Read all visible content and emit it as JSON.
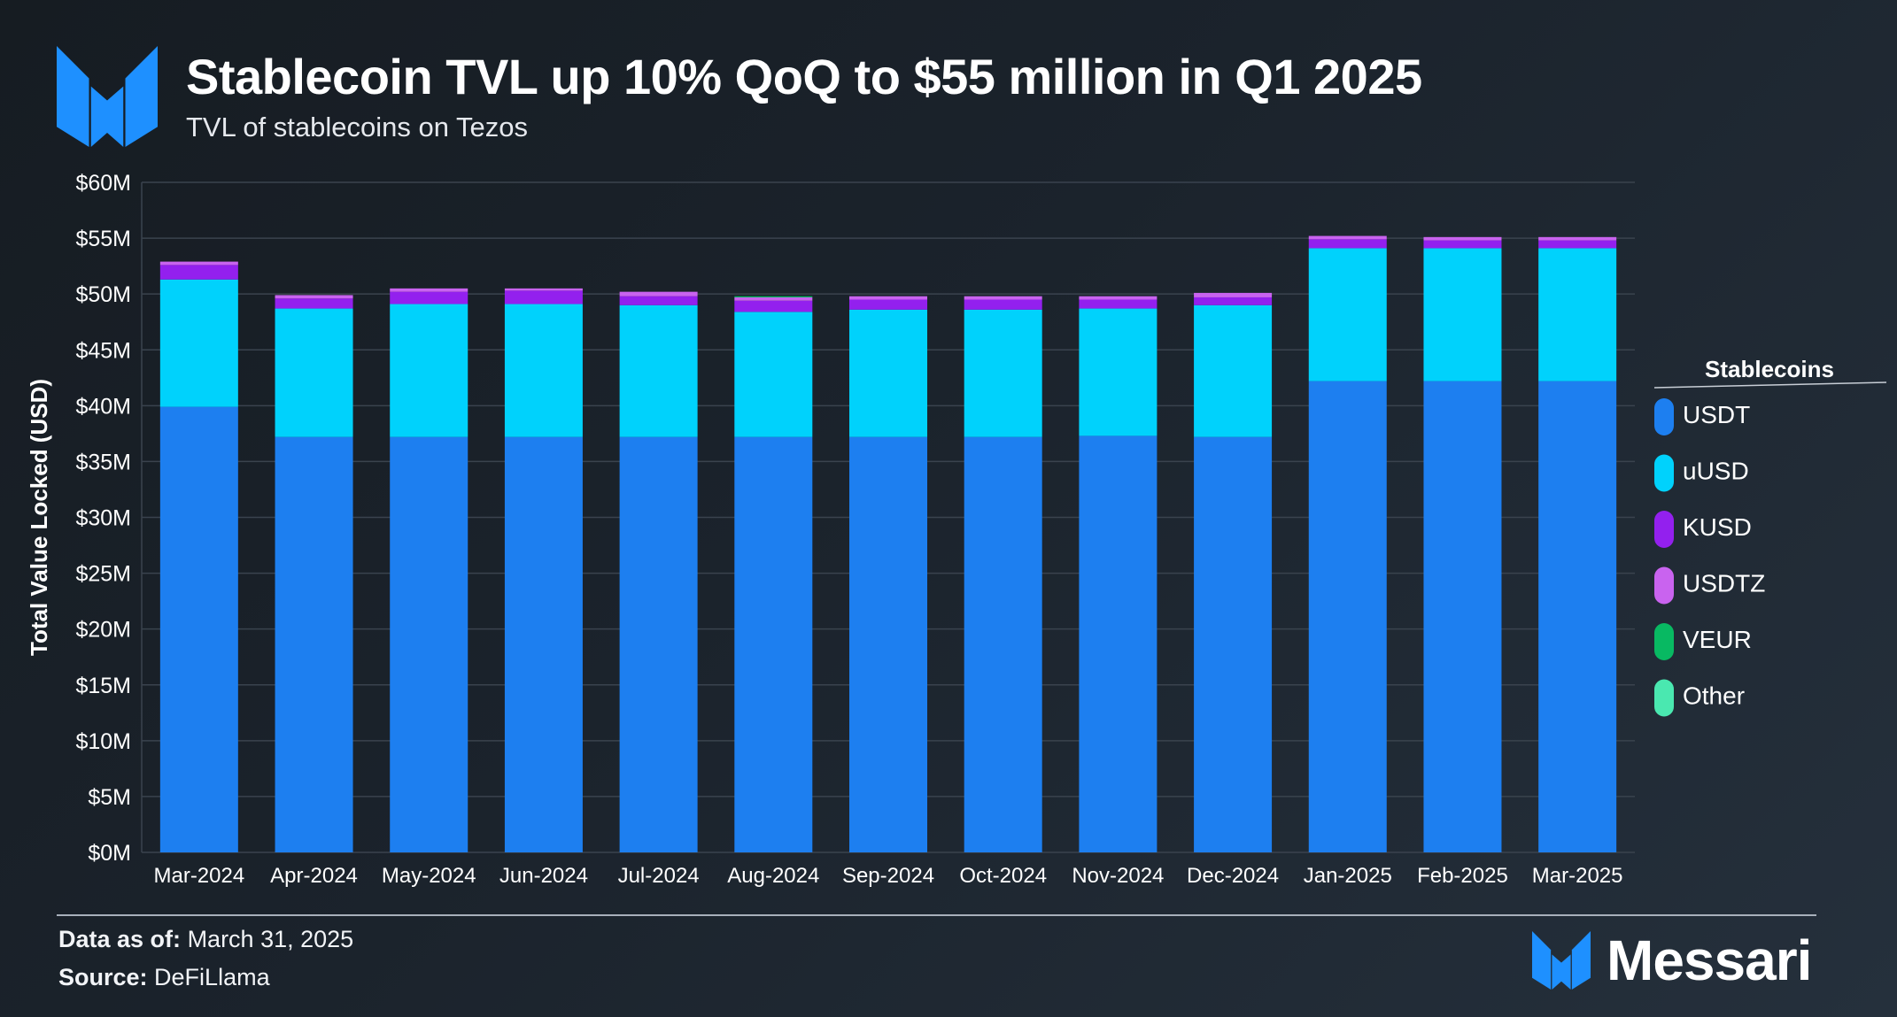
{
  "header": {
    "title": "Stablecoin TVL up 10% QoQ to $55 million in Q1 2025",
    "subtitle": "TVL of stablecoins on Tezos"
  },
  "footer": {
    "data_as_of_label": "Data as of:",
    "data_as_of_value": "March 31, 2025",
    "source_label": "Source:",
    "source_value": "DeFiLlama",
    "brand": "Messari"
  },
  "colors": {
    "USDT": "#1d7ff0",
    "uUSD": "#00d2fc",
    "KUSD": "#9320ee",
    "USDTZ": "#c963ef",
    "VEUR": "#08b962",
    "Other": "#4ae8b0",
    "brand_blue": "#1e90ff"
  },
  "chart_data": {
    "type": "bar",
    "stacked": true,
    "title": "",
    "xlabel": "",
    "ylabel": "Total Value Locked (USD)",
    "ylim": [
      0,
      60
    ],
    "yticks": [
      "$0M",
      "$5M",
      "$10M",
      "$15M",
      "$20M",
      "$25M",
      "$30M",
      "$35M",
      "$40M",
      "$45M",
      "$50M",
      "$55M",
      "$60M"
    ],
    "grid": true,
    "legend_title": "Stablecoins",
    "legend_position": "right",
    "categories": [
      "Mar-2024",
      "Apr-2024",
      "May-2024",
      "Jun-2024",
      "Jul-2024",
      "Aug-2024",
      "Sep-2024",
      "Oct-2024",
      "Nov-2024",
      "Dec-2024",
      "Jan-2025",
      "Feb-2025",
      "Mar-2025"
    ],
    "series": [
      {
        "name": "USDT",
        "values": [
          39.9,
          37.2,
          37.2,
          37.2,
          37.2,
          37.2,
          37.2,
          37.2,
          37.3,
          37.2,
          42.2,
          42.2,
          42.2
        ]
      },
      {
        "name": "uUSD",
        "values": [
          11.4,
          11.5,
          11.9,
          11.9,
          11.8,
          11.2,
          11.4,
          11.4,
          11.4,
          11.8,
          11.9,
          11.9,
          11.9
        ]
      },
      {
        "name": "KUSD",
        "values": [
          1.3,
          0.9,
          1.1,
          1.2,
          0.8,
          1.0,
          0.9,
          0.9,
          0.8,
          0.7,
          0.8,
          0.7,
          0.7
        ]
      },
      {
        "name": "USDTZ",
        "values": [
          0.3,
          0.3,
          0.3,
          0.2,
          0.4,
          0.3,
          0.3,
          0.3,
          0.3,
          0.4,
          0.3,
          0.3,
          0.3
        ]
      },
      {
        "name": "VEUR",
        "values": [
          0,
          0,
          0,
          0,
          0,
          0.1,
          0,
          0,
          0,
          0,
          0,
          0,
          0
        ]
      },
      {
        "name": "Other",
        "values": [
          0,
          0,
          0,
          0,
          0,
          0,
          0,
          0,
          0,
          0,
          0,
          0,
          0
        ]
      }
    ]
  }
}
